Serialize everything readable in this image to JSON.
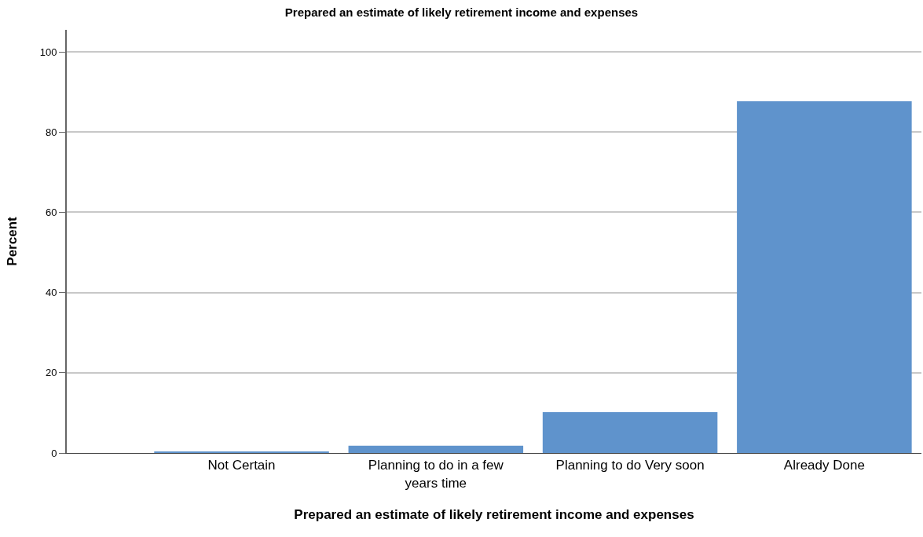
{
  "chart_data": {
    "type": "bar",
    "title": "Prepared an estimate of likely retirement income and expenses",
    "xlabel": "Prepared an estimate of likely retirement income and expenses",
    "ylabel": "Percent",
    "categories": [
      "Not Certain",
      "Planning to do in a few years time",
      "Planning to do Very soon",
      "Already Done"
    ],
    "values": [
      0.4,
      1.8,
      10.2,
      87.7
    ],
    "color": "#5f93cc",
    "ylim": [
      0,
      105.5
    ],
    "yticks": [
      0,
      20,
      40,
      60,
      80,
      100
    ],
    "grid": "y"
  }
}
